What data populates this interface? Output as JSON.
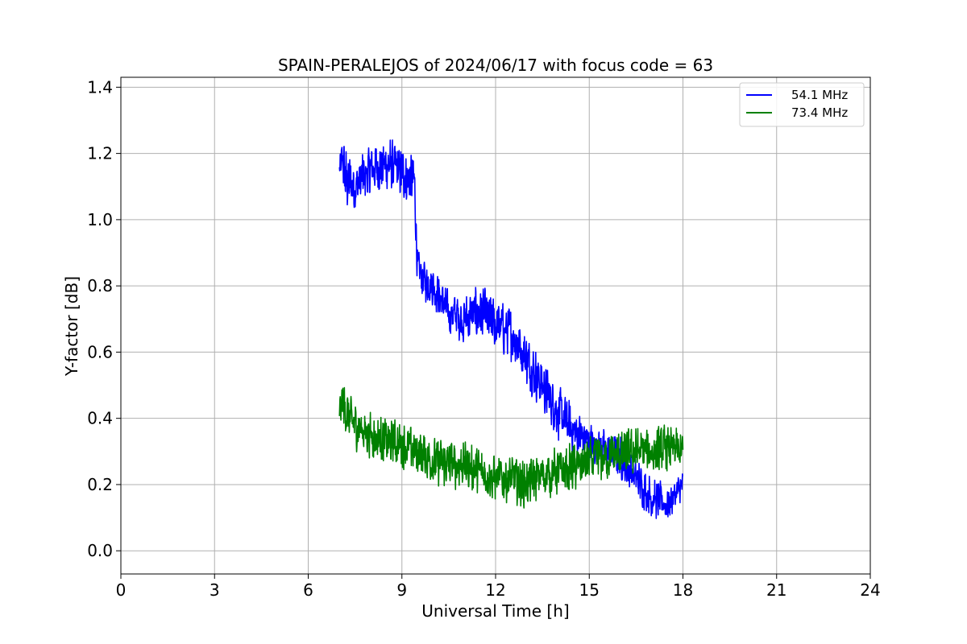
{
  "chart_data": {
    "type": "line",
    "title": "SPAIN-PERALEJOS of 2024/06/17 with focus code = 63",
    "xlabel": "Universal Time [h]",
    "ylabel": "Y-factor [dB]",
    "xlim": [
      0,
      24
    ],
    "ylim": [
      -0.07,
      1.43
    ],
    "xticks": [
      0,
      3,
      6,
      9,
      12,
      15,
      18,
      21,
      24
    ],
    "yticks": [
      0.0,
      0.2,
      0.4,
      0.6,
      0.8,
      1.0,
      1.2,
      1.4
    ],
    "ytick_labels": [
      "0.0",
      "0.2",
      "0.4",
      "0.6",
      "0.8",
      "1.0",
      "1.2",
      "1.4"
    ],
    "grid": true,
    "legend_position": "top-right",
    "series": [
      {
        "name": "54.1 MHz",
        "color": "#0000ff",
        "x": [
          7.0,
          7.1,
          7.2,
          7.5,
          8.0,
          8.5,
          9.0,
          9.4,
          9.5,
          9.7,
          10.0,
          10.5,
          11.0,
          11.5,
          12.0,
          12.5,
          13.0,
          13.5,
          14.0,
          14.5,
          15.0,
          15.5,
          16.0,
          16.5,
          17.0,
          17.5,
          18.0
        ],
        "values": [
          1.15,
          1.18,
          1.12,
          1.1,
          1.15,
          1.17,
          1.14,
          1.12,
          0.85,
          0.82,
          0.8,
          0.72,
          0.7,
          0.72,
          0.68,
          0.66,
          0.58,
          0.5,
          0.42,
          0.36,
          0.33,
          0.3,
          0.28,
          0.22,
          0.16,
          0.14,
          0.2
        ],
        "spread": [
          0.05,
          0.09,
          0.11,
          0.09,
          0.09,
          0.09,
          0.09,
          0.09,
          0.07,
          0.07,
          0.07,
          0.07,
          0.09,
          0.09,
          0.09,
          0.09,
          0.09,
          0.09,
          0.09,
          0.08,
          0.07,
          0.07,
          0.07,
          0.07,
          0.07,
          0.06,
          0.05
        ]
      },
      {
        "name": "73.4 MHz",
        "color": "#008000",
        "x": [
          7.0,
          7.1,
          7.3,
          7.5,
          8.0,
          8.5,
          9.0,
          9.5,
          10.0,
          10.5,
          11.0,
          11.5,
          12.0,
          12.5,
          13.0,
          13.5,
          14.0,
          14.5,
          15.0,
          15.5,
          16.0,
          16.5,
          17.0,
          17.5,
          18.0
        ],
        "values": [
          0.42,
          0.45,
          0.4,
          0.38,
          0.35,
          0.33,
          0.32,
          0.3,
          0.27,
          0.26,
          0.26,
          0.24,
          0.22,
          0.22,
          0.2,
          0.23,
          0.24,
          0.25,
          0.27,
          0.28,
          0.29,
          0.3,
          0.3,
          0.31,
          0.3
        ],
        "spread": [
          0.06,
          0.09,
          0.08,
          0.08,
          0.08,
          0.08,
          0.08,
          0.08,
          0.08,
          0.08,
          0.08,
          0.08,
          0.08,
          0.08,
          0.08,
          0.08,
          0.08,
          0.08,
          0.08,
          0.08,
          0.08,
          0.08,
          0.08,
          0.08,
          0.07
        ]
      }
    ]
  }
}
